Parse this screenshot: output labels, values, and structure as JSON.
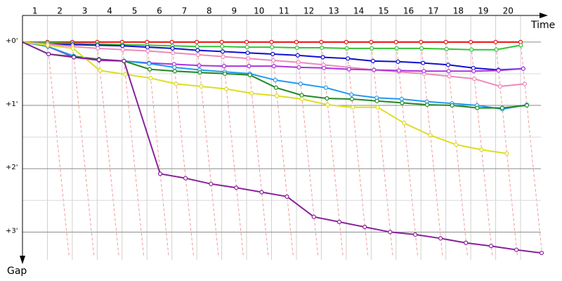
{
  "chart_data": {
    "type": "line",
    "x_label": "Time",
    "y_label": "Gap",
    "x": [
      0,
      1,
      2,
      3,
      4,
      5,
      6,
      7,
      8,
      9,
      10,
      11,
      12,
      13,
      14,
      15,
      16,
      17,
      18,
      19,
      20
    ],
    "xlim": [
      0,
      21.1
    ],
    "xticks": [
      1,
      2,
      3,
      4,
      5,
      6,
      7,
      8,
      9,
      10,
      11,
      12,
      13,
      14,
      15,
      16,
      17,
      18,
      19,
      20
    ],
    "ylim": [
      -0.42,
      3.44
    ],
    "yticks": [
      {
        "value": 0,
        "label": "+0'"
      },
      {
        "value": 1,
        "label": "+1'"
      },
      {
        "value": 2,
        "label": "+2'"
      },
      {
        "value": 3,
        "label": "+3'"
      }
    ],
    "grid": true,
    "series": [
      {
        "color": "#e81010",
        "values": [
          0,
          0,
          0,
          0,
          0,
          0,
          0,
          0,
          0,
          0,
          0,
          0,
          0,
          0,
          0,
          0,
          0,
          0,
          0,
          0,
          0
        ]
      },
      {
        "color": "#33c433",
        "values": [
          0,
          0.01,
          0.02,
          0.03,
          0.04,
          0.05,
          0.06,
          0.07,
          0.07,
          0.08,
          0.08,
          0.09,
          0.09,
          0.1,
          0.1,
          0.1,
          0.1,
          0.11,
          0.12,
          0.12,
          0.05
        ]
      },
      {
        "color": "#1010d0",
        "values": [
          0,
          0.03,
          0.04,
          0.05,
          0.06,
          0.08,
          0.1,
          0.13,
          0.15,
          0.17,
          0.19,
          0.21,
          0.24,
          0.26,
          0.3,
          0.31,
          0.33,
          0.36,
          0.41,
          0.44,
          0.42
        ]
      },
      {
        "color": "#ee88bb",
        "values": [
          0,
          0.03,
          0.07,
          0.1,
          0.12,
          0.14,
          0.17,
          0.2,
          0.23,
          0.26,
          0.29,
          0.32,
          0.36,
          0.4,
          0.44,
          0.47,
          0.5,
          0.54,
          0.58,
          0.7,
          0.66
        ]
      },
      {
        "color": "#aa33dd",
        "values": [
          0,
          0.07,
          0.24,
          0.29,
          0.3,
          0.33,
          0.35,
          0.37,
          0.38,
          0.38,
          0.38,
          0.4,
          0.41,
          0.43,
          0.44,
          0.45,
          0.46,
          0.46,
          0.46,
          0.45,
          0.42
        ]
      },
      {
        "color": "#2299ee",
        "values": [
          0,
          0.07,
          0.22,
          0.28,
          0.3,
          0.34,
          0.4,
          0.44,
          0.47,
          0.5,
          0.6,
          0.66,
          0.72,
          0.83,
          0.88,
          0.9,
          0.94,
          0.97,
          1.0,
          1.06,
          0.99
        ]
      },
      {
        "color": "#228822",
        "values": [
          0,
          0.19,
          0.23,
          0.27,
          0.3,
          0.43,
          0.46,
          0.48,
          0.5,
          0.52,
          0.72,
          0.84,
          0.89,
          0.9,
          0.93,
          0.96,
          0.99,
          1.0,
          1.04,
          1.04,
          1.0
        ]
      },
      {
        "color": "#dddd22",
        "values": [
          0,
          0.05,
          0.1,
          0.45,
          0.51,
          0.57,
          0.66,
          0.7,
          0.74,
          0.81,
          0.85,
          0.9,
          0.99,
          1.03,
          1.03,
          1.28,
          1.47,
          1.62,
          1.7,
          1.76,
          null
        ]
      },
      {
        "color": "#882299",
        "values": [
          0,
          0.19,
          0.24,
          0.28,
          0.3,
          2.08,
          2.15,
          2.24,
          2.3,
          2.37,
          2.44,
          2.76,
          2.84,
          2.92,
          3.0,
          3.04,
          3.1,
          3.17,
          3.22,
          3.28,
          3.33
        ]
      }
    ]
  }
}
